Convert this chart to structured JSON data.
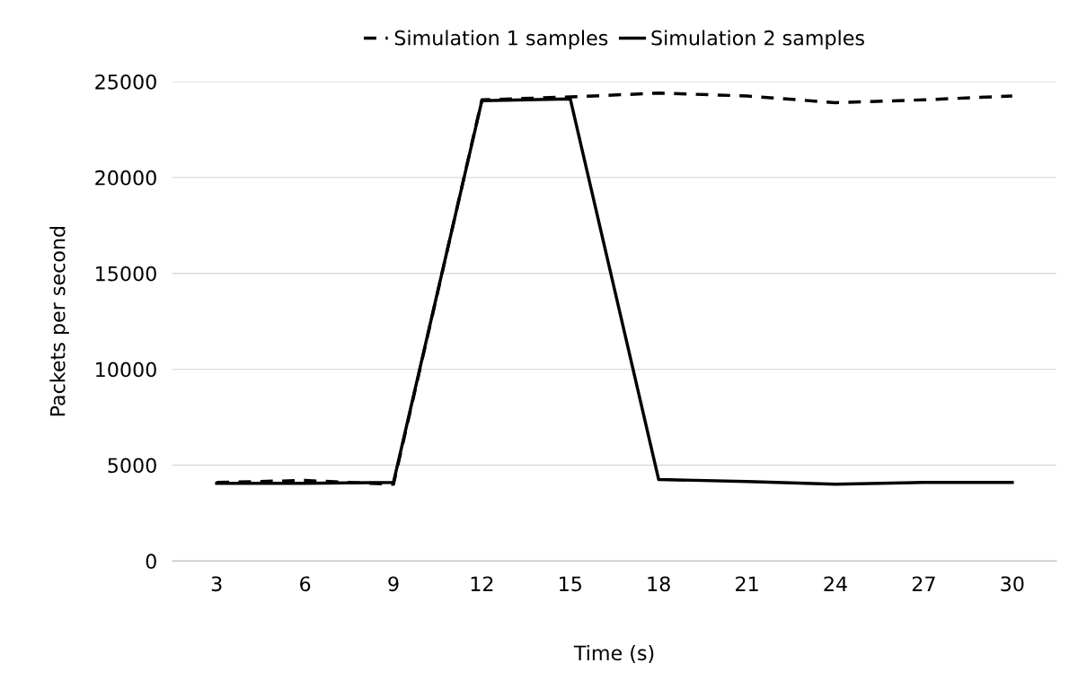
{
  "chart_data": {
    "type": "line",
    "xlabel": "Time (s)",
    "ylabel": "Packets per second",
    "categories": [
      "3",
      "6",
      "9",
      "12",
      "15",
      "18",
      "21",
      "24",
      "27",
      "30"
    ],
    "series": [
      {
        "name": "Simulation 1 samples",
        "color": "#000000",
        "line_style": "dashed",
        "values": [
          4100,
          4200,
          4000,
          24050,
          24200,
          24400,
          24250,
          23900,
          24050,
          24250
        ]
      },
      {
        "name": "Simulation 2 samples",
        "color": "#000000",
        "line_style": "solid",
        "values": [
          4050,
          4050,
          4100,
          24000,
          24100,
          4250,
          4150,
          4000,
          4100,
          4100
        ]
      }
    ],
    "ylim": [
      0,
      25000
    ],
    "yticks": [
      0,
      5000,
      10000,
      15000,
      20000,
      25000
    ],
    "grid": "y",
    "legend": "top",
    "marker": "none"
  }
}
